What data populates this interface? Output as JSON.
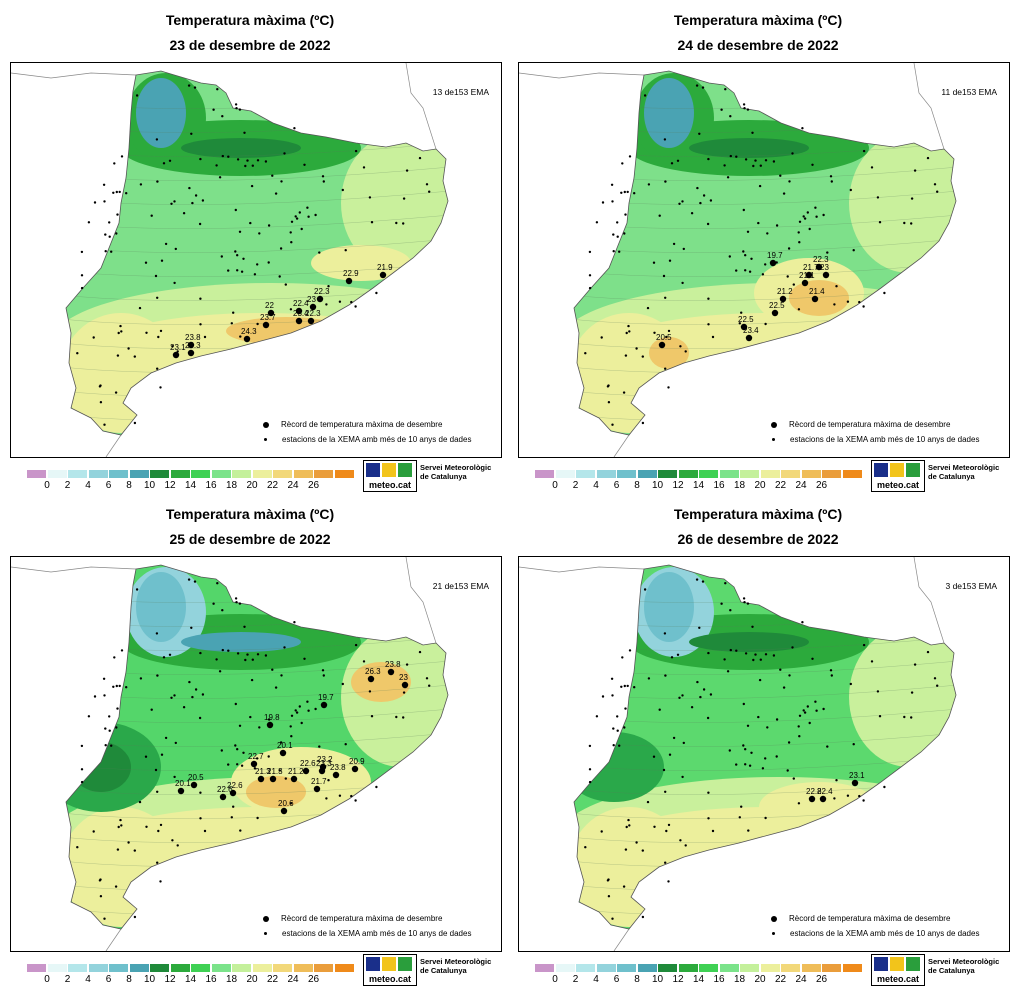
{
  "colorbar": {
    "colors": [
      "#c995c9",
      "#e6f7f7",
      "#b4e6ea",
      "#93d3dc",
      "#6fc0cc",
      "#4aa3b3",
      "#1f8a3a",
      "#2caa3c",
      "#3fd154",
      "#7be38a",
      "#c4f09b",
      "#ecef9c",
      "#f2d87a",
      "#efbd59",
      "#ea9d3b",
      "#ef8a1a"
    ],
    "ticks": [
      "0",
      "2",
      "4",
      "6",
      "8",
      "10",
      "12",
      "14",
      "16",
      "18",
      "20",
      "22",
      "24",
      "26"
    ]
  },
  "logo": {
    "text": "meteo.cat",
    "org_line1": "Servei Meteorològic",
    "org_line2": "de Catalunya"
  },
  "legend": {
    "record": "Rècord de temperatura màxima de desembre",
    "stations": "estacions de la XEMA amb més de 10 anys de dades"
  },
  "panels": [
    {
      "title": "Temperatura màxima (ºC)",
      "date": "23 de desembre de 2022",
      "ema": "13 de153 EMA",
      "records": [
        "21.9",
        "22.9",
        "22.3",
        "23",
        "22.4",
        "22",
        "23.4",
        "22.3",
        "23.7",
        "24.3",
        "23.8",
        "23.1",
        "23.3"
      ]
    },
    {
      "title": "Temperatura màxima (ºC)",
      "date": "24 de desembre de 2022",
      "ema": "11 de153 EMA",
      "records": [
        "19.7",
        "22.3",
        "21.7",
        "23",
        "21.1",
        "21.2",
        "21.4",
        "22.5",
        "22.5",
        "20.5",
        "23.4"
      ]
    },
    {
      "title": "Temperatura màxima (ºC)",
      "date": "25 de desembre de 2022",
      "ema": "21 de153 EMA",
      "records": [
        "26.3",
        "23.8",
        "23",
        "19.7",
        "19.8",
        "20.1",
        "22.7",
        "23.2",
        "20.9",
        "22.6",
        "23.3",
        "23.8",
        "21.3",
        "21.2",
        "21.3",
        "20.5",
        "20.1",
        "22.6",
        "22.6",
        "20.6",
        "21.7"
      ]
    },
    {
      "title": "Temperatura màxima (ºC)",
      "date": "26 de desembre de 2022",
      "ema": "3 de153 EMA",
      "records": [
        "23.1",
        "22.8",
        "22.4"
      ]
    }
  ]
}
